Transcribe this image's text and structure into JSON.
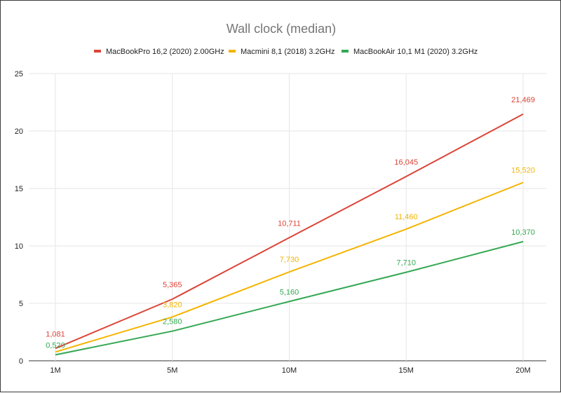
{
  "chart_data": {
    "type": "line",
    "title": "Wall clock (median)",
    "xlabel": "",
    "ylabel": "",
    "categories": [
      "1M",
      "5M",
      "10M",
      "15M",
      "20M"
    ],
    "ylim": [
      0,
      25
    ],
    "yticks": [
      0,
      5,
      10,
      15,
      20,
      25
    ],
    "grid": true,
    "legend_position": "top",
    "series": [
      {
        "name": "MacBookPro 16,2 (2020) 2.00GHz",
        "color": "#db4437",
        "values": [
          1.081,
          5.365,
          10.711,
          16.045,
          21.469
        ],
        "labels": [
          "1,081",
          "5,365",
          "10,711",
          "16,045",
          "21,469"
        ]
      },
      {
        "name": "Macmini 8,1 (2018) 3.2GHz",
        "color": "#f4b400",
        "values": [
          0.77,
          3.82,
          7.73,
          11.46,
          15.52
        ],
        "labels": [
          "",
          "3,820",
          "7,730",
          "11,460",
          "15,520"
        ]
      },
      {
        "name": "MacBookAir 10,1 M1 (2020) 3.2GHz",
        "color": "#34a853",
        "values": [
          0.52,
          2.58,
          5.16,
          7.71,
          10.37
        ],
        "labels": [
          "0,520",
          "2,580",
          "5,160",
          "7,710",
          "10,370"
        ]
      }
    ]
  }
}
